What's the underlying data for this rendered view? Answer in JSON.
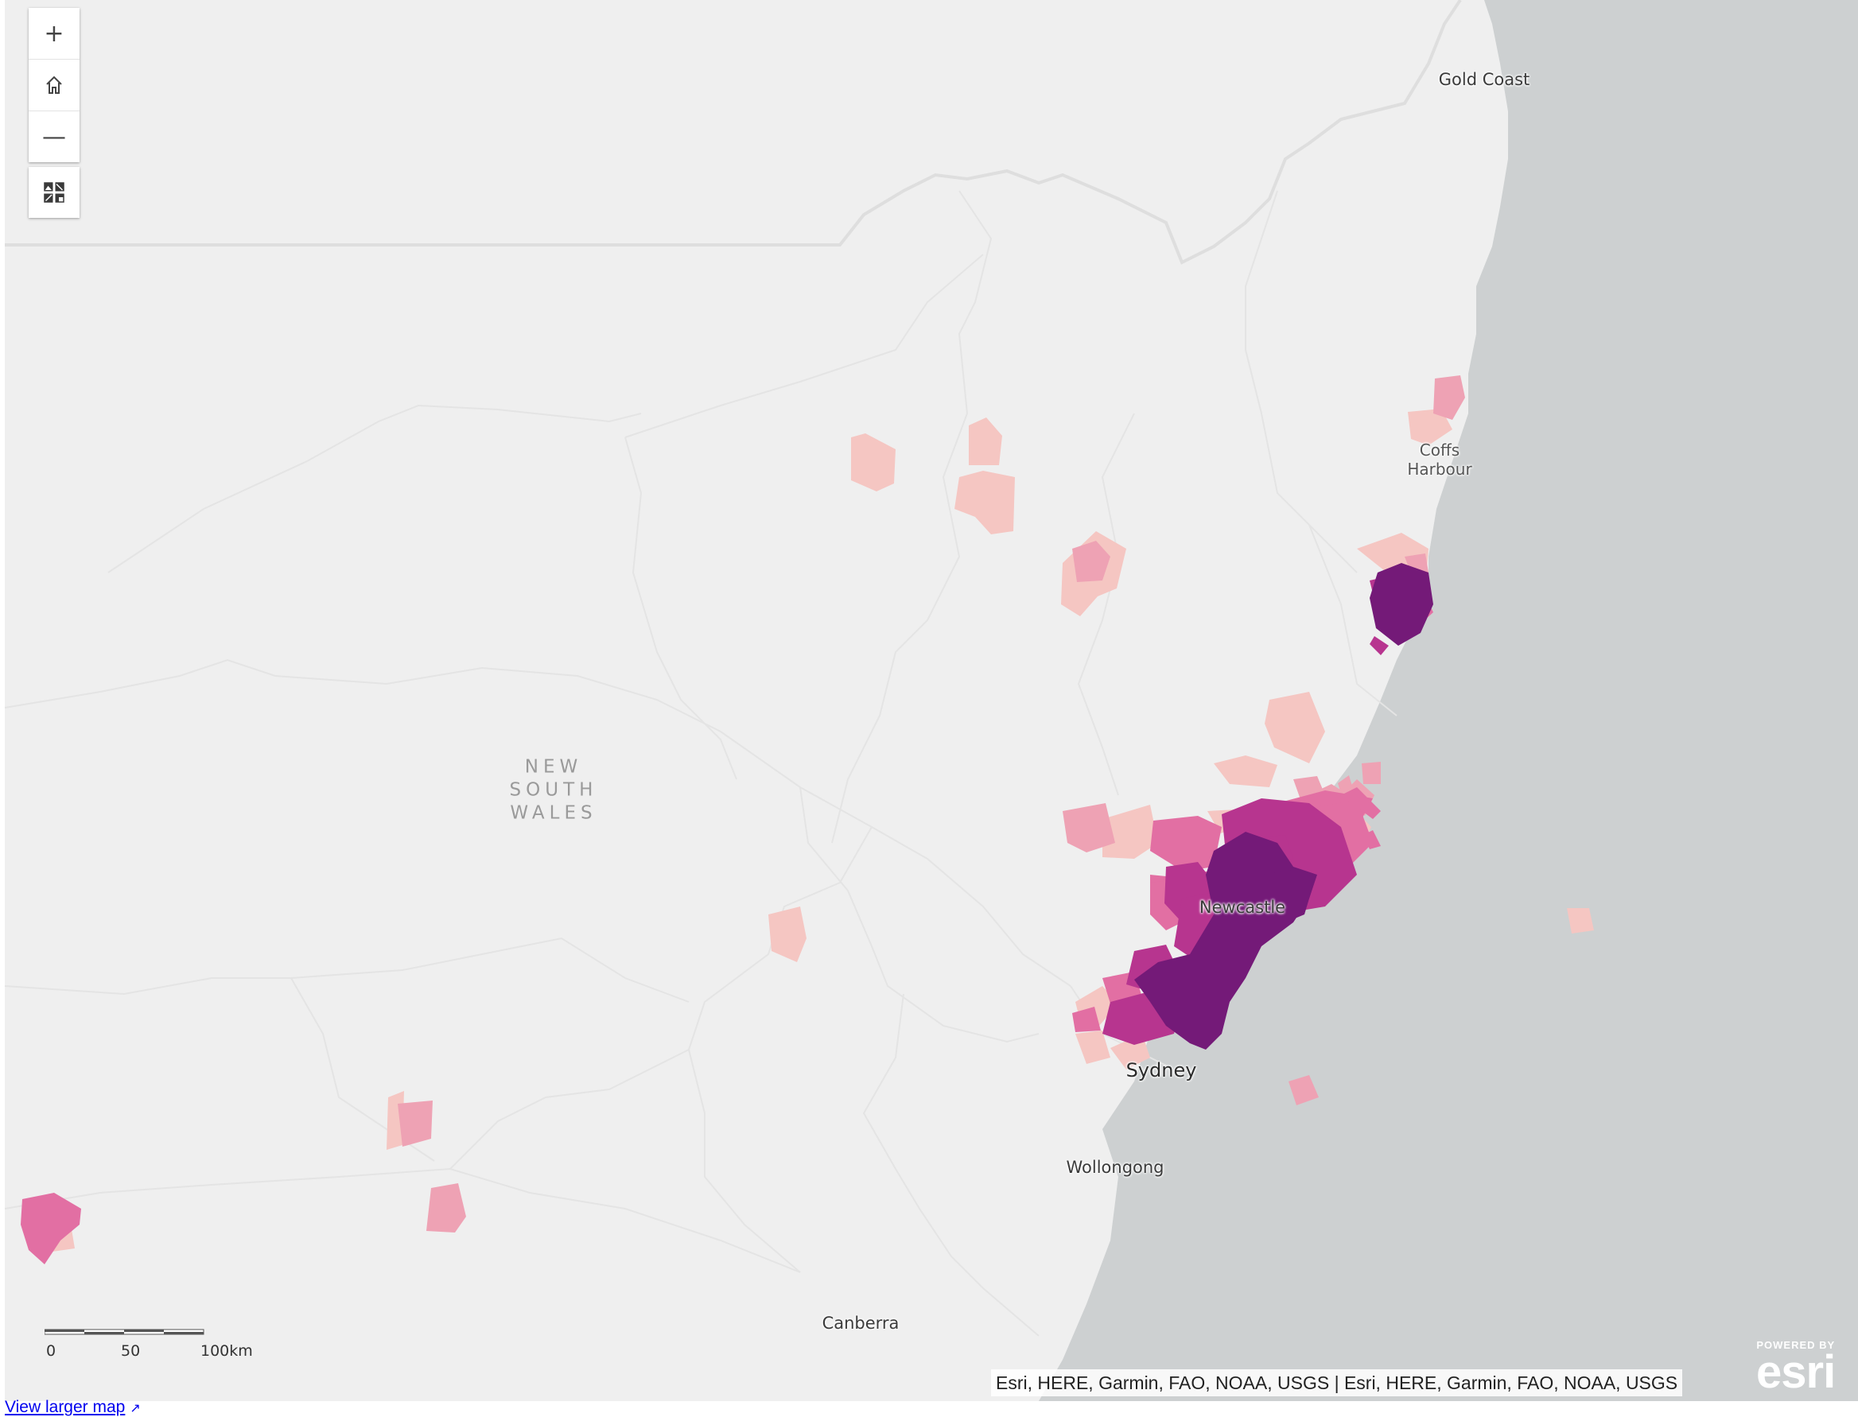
{
  "map_controls": {
    "zoom_in": "+",
    "home_icon": "home-icon",
    "zoom_out": "—",
    "basemap_gallery_icon": "basemap-gallery-icon"
  },
  "labels": {
    "state": [
      "NEW",
      "SOUTH",
      "WALES"
    ],
    "gold_coast": "Gold Coast",
    "coffs_harbour": [
      "Coffs",
      "Harbour"
    ],
    "newcastle": "Newcastle",
    "sydney": "Sydney",
    "wollongong": "Wollongong",
    "canberra": "Canberra"
  },
  "scalebar": {
    "ticks": [
      "0",
      "50",
      "100km"
    ]
  },
  "attribution": "Esri, HERE, Garmin, FAO, NOAA, USGS | Esri, HERE, Garmin, FAO, NOAA, USGS",
  "logo": {
    "powered_by": "POWERED BY",
    "brand": "esri"
  },
  "link": {
    "view_larger_map": "View larger map"
  },
  "colors": {
    "land": "#efefef",
    "ocean": "#cdd0d1",
    "boundary": "#dcdcdc",
    "class_1": "#f5c6c2",
    "class_2": "#eea2b4",
    "class_3": "#e26fa3",
    "class_4": "#b7358f",
    "class_5": "#741a78"
  }
}
